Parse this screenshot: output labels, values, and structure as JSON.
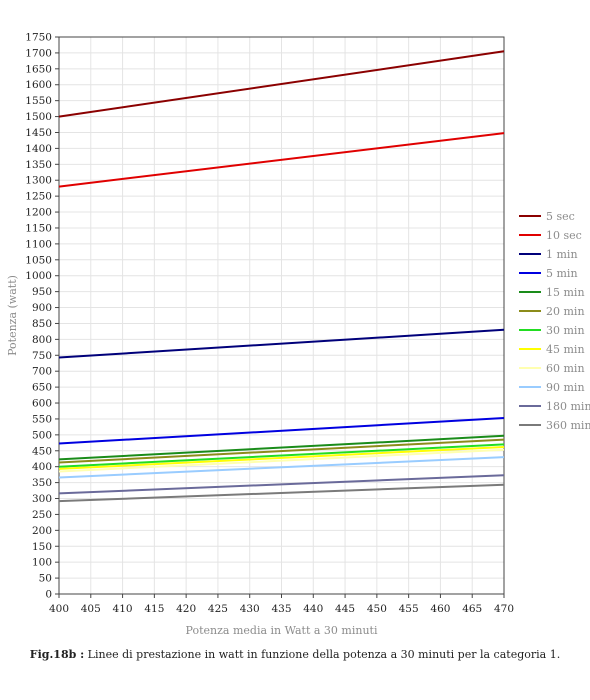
{
  "chart_data": {
    "type": "line",
    "xlabel": "Potenza media in Watt a 30 minuti",
    "ylabel": "Potenza (watt)",
    "xlim": [
      400,
      470
    ],
    "ylim": [
      0,
      1750
    ],
    "xticks": [
      400,
      405,
      410,
      415,
      420,
      425,
      430,
      435,
      440,
      445,
      450,
      455,
      460,
      465,
      470
    ],
    "yticks": [
      0,
      50,
      100,
      150,
      200,
      250,
      300,
      350,
      400,
      450,
      500,
      550,
      600,
      650,
      700,
      750,
      800,
      850,
      900,
      950,
      1000,
      1050,
      1100,
      1150,
      1200,
      1250,
      1300,
      1350,
      1400,
      1450,
      1500,
      1550,
      1600,
      1650,
      1700,
      1750
    ],
    "grid": true,
    "legend_position": "right",
    "x": [
      400,
      470
    ],
    "series": [
      {
        "name": "5 sec",
        "color": "#8b0000",
        "values": [
          1500,
          1705
        ]
      },
      {
        "name": "10 sec",
        "color": "#e00000",
        "values": [
          1280,
          1448
        ]
      },
      {
        "name": "1 min",
        "color": "#00007a",
        "values": [
          743,
          830
        ]
      },
      {
        "name": "5 min",
        "color": "#0000e0",
        "values": [
          473,
          553
        ]
      },
      {
        "name": "15 min",
        "color": "#1a8c1a",
        "values": [
          423,
          497
        ]
      },
      {
        "name": "20 min",
        "color": "#8c8c1a",
        "values": [
          413,
          485
        ]
      },
      {
        "name": "30 min",
        "color": "#22dd22",
        "values": [
          400,
          470
        ]
      },
      {
        "name": "45 min",
        "color": "#ffff00",
        "values": [
          393,
          462
        ]
      },
      {
        "name": "60 min",
        "color": "#ffffb0",
        "values": [
          385,
          453
        ]
      },
      {
        "name": "90 min",
        "color": "#99ccff",
        "values": [
          366,
          430
        ]
      },
      {
        "name": "180 min",
        "color": "#6a6a9a",
        "values": [
          316,
          373
        ]
      },
      {
        "name": "360 min",
        "color": "#7a7a7a",
        "values": [
          292,
          343
        ]
      }
    ]
  },
  "caption": {
    "label": "Fig.18b :",
    "text": " Linee di prestazione in watt in funzione della potenza a 30 minuti per la categoria 1."
  }
}
